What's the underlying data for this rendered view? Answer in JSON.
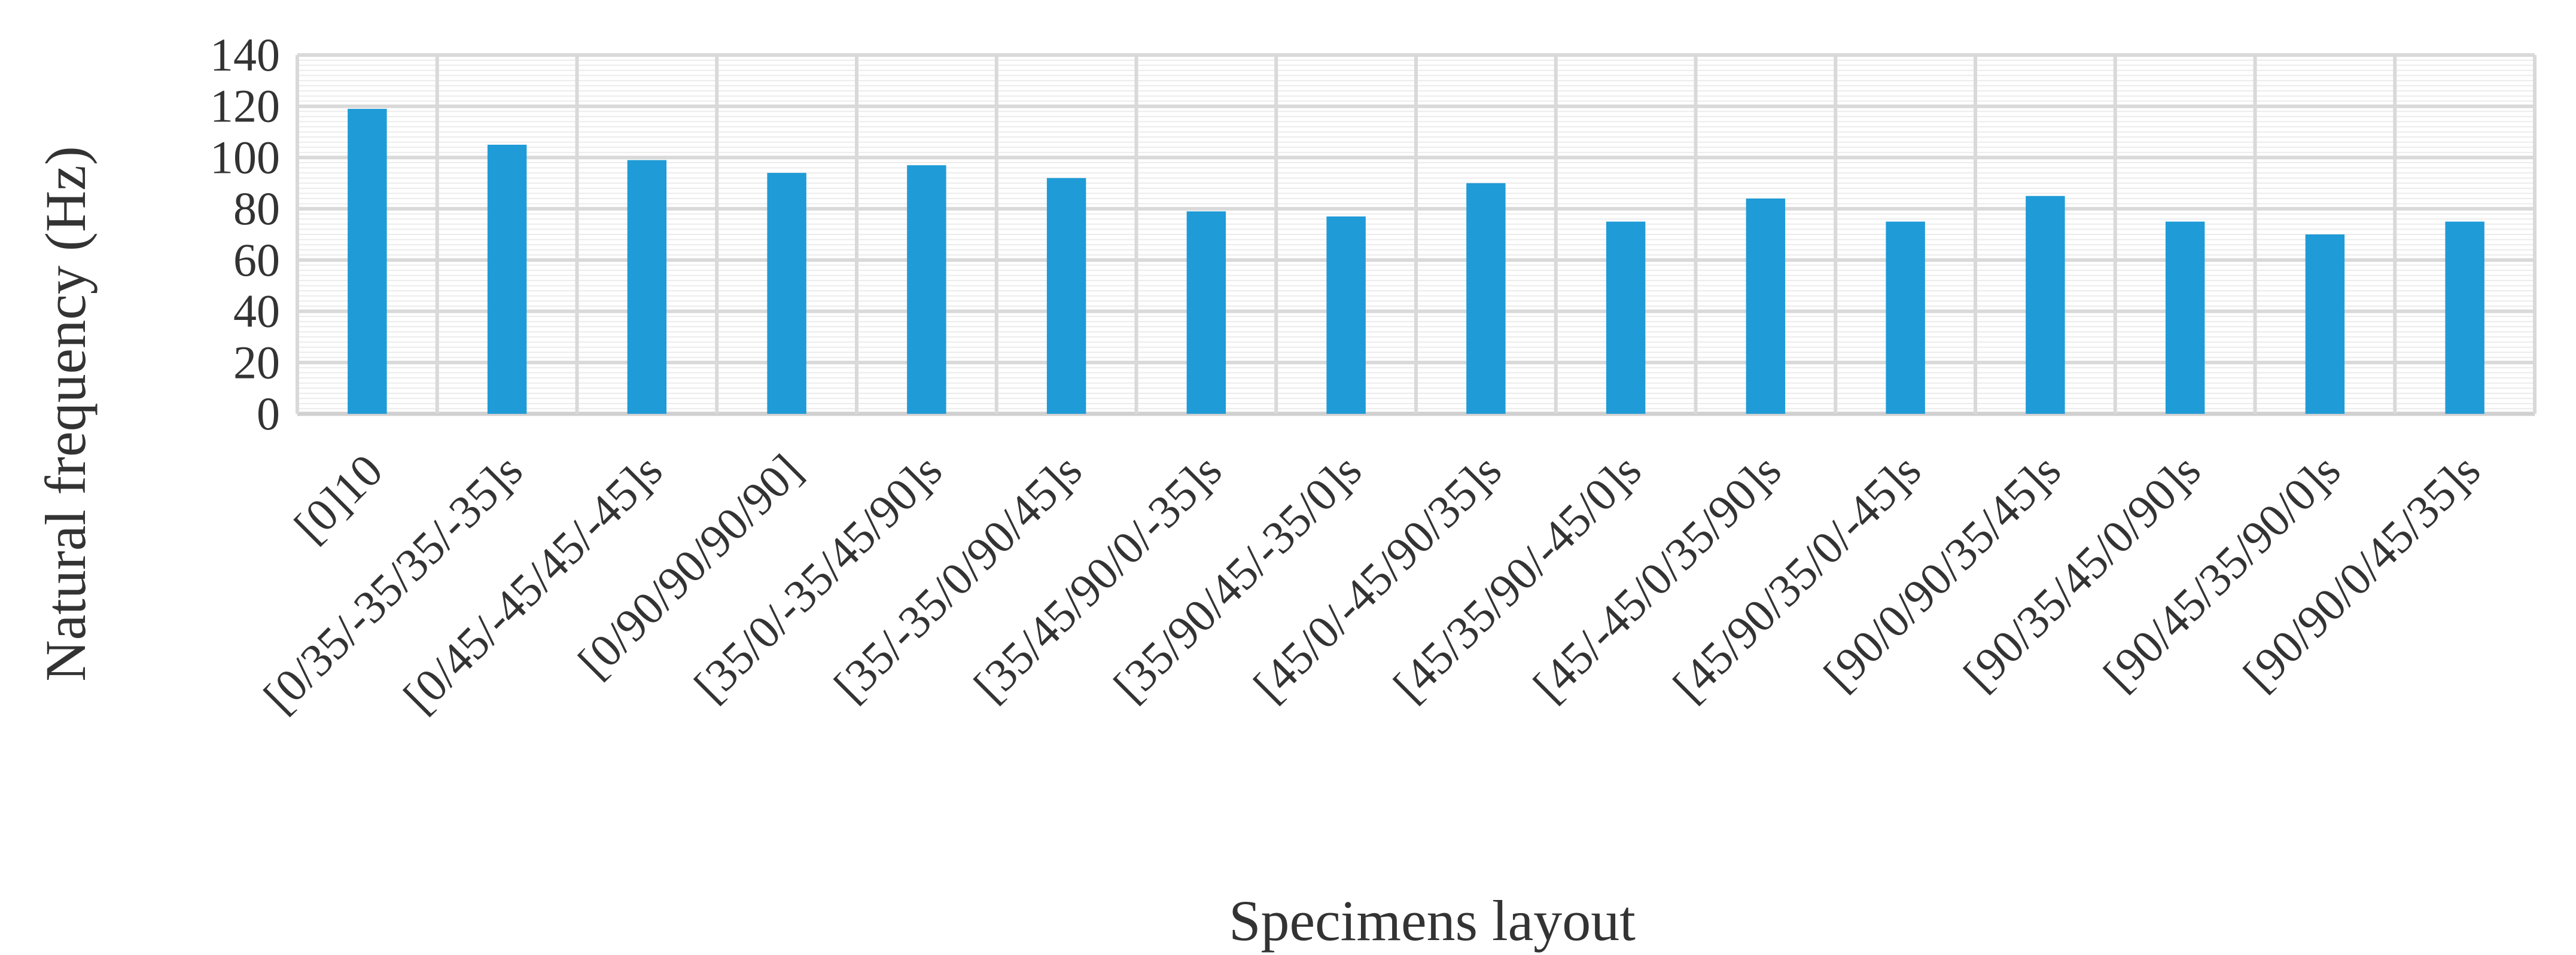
{
  "chart_data": {
    "type": "bar",
    "title": "",
    "xlabel": "Specimens layout",
    "ylabel": "Natural frequency (Hz)",
    "ylim": [
      0,
      140
    ],
    "yticks": [
      0,
      20,
      40,
      60,
      80,
      100,
      120,
      140
    ],
    "grid": true,
    "legend": "none",
    "bar_color": "#1f9bd7",
    "grid_color": "#d9d9d9",
    "categories": [
      "[0]10",
      "[0/35/-35/35/-35]s",
      "[0/45/-45/45/-45]s",
      "[0/90/90/90/90]",
      "[35/0/-35/45/90]s",
      "[35/-35/0/90/45]s",
      "[35/45/90/0/-35]s",
      "[35/90/45/-35/0]s",
      "[45/0/-45/90/35]s",
      "[45/35/90/-45/0]s",
      "[45/-45/0/35/90]s",
      "[45/90/35/0/-45]s",
      "[90/0/90/35/45]s",
      "[90/35/45/0/90]s",
      "[90/45/35/90/0]s",
      "[90/90/0/45/35]s"
    ],
    "values": [
      119,
      105,
      99,
      94,
      97,
      92,
      79,
      77,
      90,
      75,
      84,
      75,
      85,
      75,
      70,
      75
    ]
  }
}
